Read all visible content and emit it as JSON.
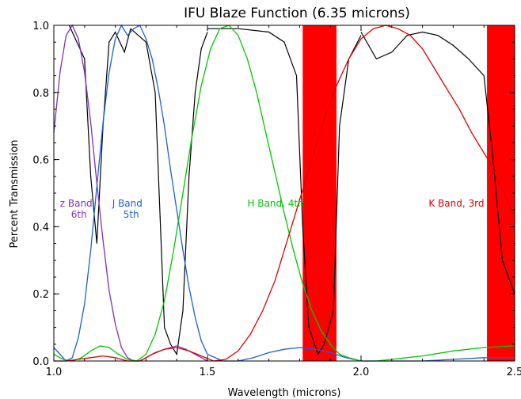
{
  "chart_data": {
    "type": "line",
    "title": "IFU Blaze Function (6.35 microns)",
    "xlabel": "Wavelength (microns)",
    "ylabel": "Percent Transmission",
    "xlim": [
      1.0,
      2.5
    ],
    "ylim": [
      0.0,
      1.0
    ],
    "xticks": [
      1.0,
      1.5,
      2.0,
      2.5
    ],
    "xtick_labels": [
      "1.0",
      "1.5",
      "2.0",
      "2.5"
    ],
    "yticks": [
      0.0,
      0.2,
      0.4,
      0.6,
      0.8,
      1.0
    ],
    "ytick_labels": [
      "0.0",
      "0.2",
      "0.4",
      "0.6",
      "0.8",
      "1.0"
    ],
    "grid": false,
    "shaded_regions": [
      {
        "x": [
          1.81,
          1.92
        ],
        "color": "#ff0000"
      },
      {
        "x": [
          2.41,
          2.5
        ],
        "color": "#ff0000"
      }
    ],
    "series": [
      {
        "color": "#7f2fbf",
        "x": [
          1.0,
          1.02,
          1.04,
          1.06,
          1.08,
          1.1,
          1.12,
          1.14,
          1.16,
          1.18,
          1.2,
          1.22,
          1.24,
          1.26,
          1.28,
          1.3,
          1.33,
          1.36,
          1.4,
          1.43,
          1.46,
          1.5
        ],
        "values": [
          0.68,
          0.86,
          0.97,
          1.0,
          0.96,
          0.86,
          0.71,
          0.53,
          0.36,
          0.21,
          0.11,
          0.04,
          0.01,
          0.0,
          0.0,
          0.01,
          0.025,
          0.035,
          0.045,
          0.035,
          0.02,
          0.0
        ]
      },
      {
        "color": "#1f5fd6",
        "x": [
          1.0,
          1.02,
          1.04,
          1.06,
          1.08,
          1.1,
          1.12,
          1.14,
          1.16,
          1.18,
          1.2,
          1.22,
          1.24,
          1.26,
          1.28,
          1.3,
          1.32,
          1.34,
          1.36,
          1.38,
          1.4,
          1.42,
          1.44,
          1.46,
          1.48,
          1.5,
          1.55,
          1.6,
          1.65,
          1.7,
          1.75,
          1.8,
          1.85,
          1.9,
          1.95,
          2.0,
          2.1,
          2.2,
          2.3,
          2.4,
          2.5
        ],
        "values": [
          0.04,
          0.02,
          0.0,
          0.01,
          0.07,
          0.17,
          0.33,
          0.52,
          0.71,
          0.86,
          0.96,
          1.0,
          0.97,
          0.99,
          1.0,
          0.96,
          0.9,
          0.81,
          0.7,
          0.57,
          0.45,
          0.33,
          0.22,
          0.13,
          0.06,
          0.02,
          0.0,
          0.0,
          0.01,
          0.025,
          0.035,
          0.04,
          0.035,
          0.025,
          0.01,
          0.0,
          0.0,
          0.0,
          0.005,
          0.01,
          0.01
        ]
      },
      {
        "color": "#00c800",
        "x": [
          1.0,
          1.03,
          1.06,
          1.09,
          1.12,
          1.15,
          1.18,
          1.21,
          1.24,
          1.27,
          1.3,
          1.33,
          1.36,
          1.39,
          1.42,
          1.45,
          1.48,
          1.51,
          1.54,
          1.57,
          1.6,
          1.63,
          1.66,
          1.69,
          1.72,
          1.75,
          1.78,
          1.81,
          1.84,
          1.87,
          1.9,
          1.93,
          1.96,
          2.0,
          2.05,
          2.1,
          2.2,
          2.3,
          2.4,
          2.5
        ],
        "values": [
          0.02,
          0.005,
          0.0,
          0.01,
          0.03,
          0.045,
          0.04,
          0.02,
          0.005,
          0.0,
          0.02,
          0.08,
          0.18,
          0.33,
          0.5,
          0.67,
          0.82,
          0.93,
          0.99,
          1.0,
          0.97,
          0.9,
          0.8,
          0.68,
          0.56,
          0.44,
          0.33,
          0.23,
          0.15,
          0.09,
          0.05,
          0.02,
          0.01,
          0.0,
          0.0,
          0.005,
          0.015,
          0.03,
          0.04,
          0.045
        ]
      },
      {
        "color": "#e00000",
        "x": [
          1.0,
          1.04,
          1.08,
          1.12,
          1.16,
          1.2,
          1.24,
          1.28,
          1.32,
          1.36,
          1.4,
          1.44,
          1.48,
          1.52,
          1.56,
          1.6,
          1.64,
          1.68,
          1.72,
          1.76,
          1.8,
          1.84,
          1.88,
          1.92,
          1.96,
          2.0,
          2.04,
          2.08,
          2.12,
          2.16,
          2.2,
          2.24,
          2.28,
          2.32,
          2.36,
          2.4,
          2.42,
          2.45,
          2.48,
          2.5
        ],
        "values": [
          0.0,
          0.0,
          0.005,
          0.01,
          0.015,
          0.01,
          0.0,
          0.0,
          0.02,
          0.035,
          0.04,
          0.03,
          0.015,
          0.0,
          0.005,
          0.03,
          0.08,
          0.15,
          0.24,
          0.36,
          0.48,
          0.6,
          0.72,
          0.82,
          0.9,
          0.96,
          0.99,
          1.0,
          0.99,
          0.97,
          0.93,
          0.87,
          0.81,
          0.75,
          0.68,
          0.62,
          0.59,
          0.53,
          0.47,
          0.43
        ]
      }
    ],
    "atmosphere": {
      "color": "#000000",
      "segments": [
        {
          "x": [
            1.05,
            1.1,
            1.12,
            1.14,
            1.16,
            1.18,
            1.2,
            1.23,
            1.25
          ],
          "values": [
            1.0,
            0.9,
            0.55,
            0.35,
            0.7,
            0.95,
            0.98,
            0.92,
            0.99
          ]
        },
        {
          "x": [
            1.25,
            1.3,
            1.33,
            1.36,
            1.38,
            1.4,
            1.42,
            1.44,
            1.46,
            1.48,
            1.5
          ],
          "values": [
            0.99,
            0.95,
            0.8,
            0.1,
            0.05,
            0.02,
            0.15,
            0.55,
            0.8,
            0.93,
            0.98
          ]
        },
        {
          "x": [
            1.5,
            1.6,
            1.7,
            1.75,
            1.79,
            1.81,
            1.83,
            1.86,
            1.88,
            1.91,
            1.93,
            1.96,
            2.0
          ],
          "values": [
            0.99,
            0.99,
            0.98,
            0.95,
            0.85,
            0.4,
            0.1,
            0.02,
            0.05,
            0.15,
            0.7,
            0.9,
            0.97
          ]
        },
        {
          "x": [
            2.0,
            2.05,
            2.1,
            2.15,
            2.2,
            2.25,
            2.3,
            2.35,
            2.4,
            2.43,
            2.46,
            2.5
          ],
          "values": [
            0.98,
            0.9,
            0.92,
            0.97,
            0.98,
            0.97,
            0.94,
            0.9,
            0.85,
            0.6,
            0.3,
            0.2
          ]
        }
      ]
    },
    "annotations": [
      {
        "lines": [
          "z Band",
          "6th"
        ],
        "x": 1.02,
        "y": 0.46,
        "color": "#7f2fbf"
      },
      {
        "lines": [
          "J Band",
          "5th"
        ],
        "x": 1.19,
        "y": 0.46,
        "color": "#1f5fd6"
      },
      {
        "lines": [
          "H Band, 4th"
        ],
        "x": 1.63,
        "y": 0.46,
        "color": "#00c800"
      },
      {
        "lines": [
          "K Band, 3rd"
        ],
        "x": 2.22,
        "y": 0.46,
        "color": "#e00000"
      }
    ]
  }
}
